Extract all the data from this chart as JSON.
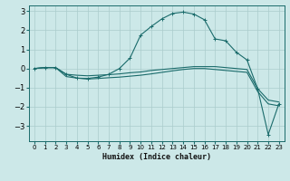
{
  "xlabel": "Humidex (Indice chaleur)",
  "ylabel": "",
  "xlim": [
    -0.5,
    23.5
  ],
  "ylim": [
    -3.8,
    3.3
  ],
  "bg_color": "#cce8e8",
  "line_color": "#1a6b6b",
  "grid_color": "#aacccc",
  "xticks": [
    0,
    1,
    2,
    3,
    4,
    5,
    6,
    7,
    8,
    9,
    10,
    11,
    12,
    13,
    14,
    15,
    16,
    17,
    18,
    19,
    20,
    21,
    22,
    23
  ],
  "yticks": [
    -3,
    -2,
    -1,
    0,
    1,
    2,
    3
  ],
  "lines": [
    {
      "x": [
        0,
        1,
        2,
        3,
        4,
        5,
        6,
        7,
        8,
        9,
        10,
        11,
        12,
        13,
        14,
        15,
        16,
        17,
        18,
        19,
        20,
        21,
        22,
        23
      ],
      "y": [
        0.0,
        0.05,
        0.05,
        -0.3,
        -0.35,
        -0.38,
        -0.35,
        -0.32,
        -0.28,
        -0.22,
        -0.18,
        -0.1,
        -0.05,
        0.0,
        0.05,
        0.1,
        0.1,
        0.1,
        0.05,
        0.0,
        -0.05,
        -1.05,
        -1.65,
        -1.75
      ],
      "marker": false
    },
    {
      "x": [
        0,
        1,
        2,
        3,
        4,
        5,
        6,
        7,
        8,
        9,
        10,
        11,
        12,
        13,
        14,
        15,
        16,
        17,
        18,
        19,
        20,
        21,
        22,
        23
      ],
      "y": [
        0.0,
        0.05,
        0.05,
        -0.42,
        -0.5,
        -0.55,
        -0.52,
        -0.48,
        -0.45,
        -0.4,
        -0.35,
        -0.28,
        -0.2,
        -0.12,
        -0.05,
        0.0,
        0.0,
        -0.05,
        -0.1,
        -0.15,
        -0.2,
        -1.2,
        -1.85,
        -1.95
      ],
      "marker": false
    },
    {
      "x": [
        0,
        1,
        2,
        3,
        4,
        5,
        6,
        7,
        8,
        9,
        10,
        11,
        12,
        13,
        14,
        15,
        16,
        17,
        18,
        19,
        20,
        21,
        22,
        23
      ],
      "y": [
        0.0,
        0.05,
        0.05,
        -0.3,
        -0.5,
        -0.52,
        -0.45,
        -0.3,
        0.0,
        0.55,
        1.75,
        2.2,
        2.6,
        2.88,
        2.95,
        2.85,
        2.55,
        1.55,
        1.45,
        0.85,
        0.45,
        -1.05,
        -3.45,
        -1.85
      ],
      "marker": true
    }
  ]
}
